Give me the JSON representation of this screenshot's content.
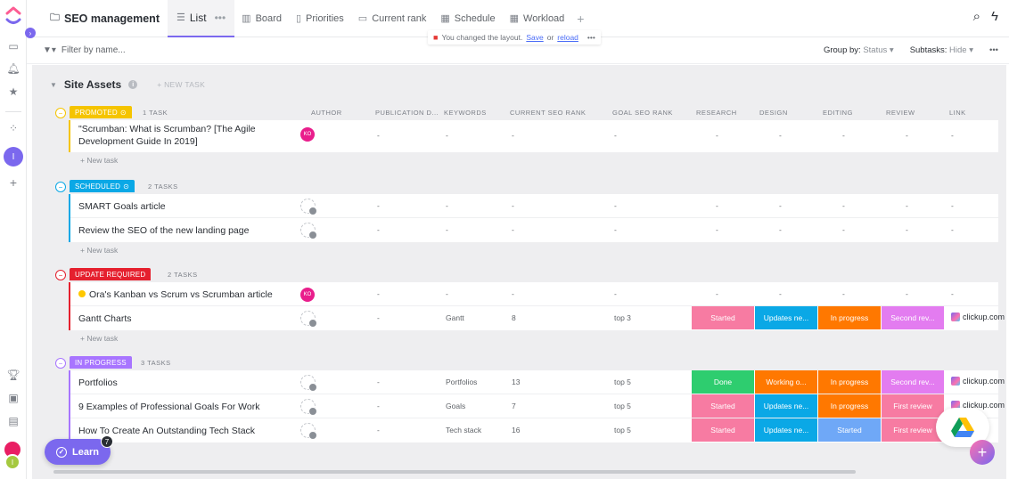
{
  "header": {
    "space_title": "SEO management",
    "tabs": [
      {
        "label": "List",
        "icon": "list-icon"
      },
      {
        "label": "Board",
        "icon": "board-icon"
      },
      {
        "label": "Priorities",
        "icon": "priorities-icon"
      },
      {
        "label": "Current rank",
        "icon": "current-rank-icon"
      },
      {
        "label": "Schedule",
        "icon": "calendar-icon"
      },
      {
        "label": "Workload",
        "icon": "workload-icon"
      }
    ],
    "tab_more": "•••",
    "add_tab": "+"
  },
  "notice": {
    "text": "You changed the layout.",
    "save": "Save",
    "or": "or",
    "reload": "reload",
    "more": "•••"
  },
  "filterbar": {
    "filter_placeholder": "Filter by name...",
    "group_by_label": "Group by:",
    "group_by_value": "Status",
    "subtasks_label": "Subtasks:",
    "subtasks_value": "Hide",
    "more": "•••"
  },
  "rail": {
    "workspace_initial": "I",
    "user_initial": "I"
  },
  "list": {
    "title": "Site Assets",
    "new_task": "+ NEW TASK",
    "new_task_row": "+ New task"
  },
  "columns": [
    "AUTHOR",
    "PUBLICATION D...",
    "KEYWORDS",
    "CURRENT SEO RANK",
    "GOAL SEO RANK",
    "RESEARCH",
    "DESIGN",
    "EDITING",
    "REVIEW",
    "LINK"
  ],
  "groups": [
    {
      "status": "PROMOTED",
      "count": "1 TASK",
      "color": "#f5c400",
      "tasks": [
        {
          "name": "\"Scrumban: What is Scrumban? [The Agile Development Guide In 2019]",
          "author": "KO",
          "pub": "-",
          "keywords": "-",
          "current": "-",
          "goal": "-",
          "research": "-",
          "design": "-",
          "editing": "-",
          "review": "-",
          "link": "-"
        }
      ]
    },
    {
      "status": "SCHEDULED",
      "count": "2 TASKS",
      "color": "#0aa8e6",
      "tasks": [
        {
          "name": "SMART Goals article",
          "author": "",
          "pub": "-",
          "keywords": "-",
          "current": "-",
          "goal": "-",
          "research": "-",
          "design": "-",
          "editing": "-",
          "review": "-",
          "link": "-"
        },
        {
          "name": "Review the SEO of the new landing page",
          "author": "",
          "pub": "-",
          "keywords": "-",
          "current": "-",
          "goal": "-",
          "research": "-",
          "design": "-",
          "editing": "-",
          "review": "-",
          "link": "-"
        }
      ]
    },
    {
      "status": "UPDATE REQUIRED",
      "count": "2 TASKS",
      "color": "#e5202e",
      "tasks": [
        {
          "name": "Ora's Kanban vs Scrum vs Scrumban article",
          "warn": true,
          "author": "KO",
          "pub": "-",
          "keywords": "-",
          "current": "-",
          "goal": "-",
          "research": "-",
          "design": "-",
          "editing": "-",
          "review": "-",
          "link": "-"
        },
        {
          "name": "Gantt Charts",
          "author": "",
          "pub": "-",
          "keywords": "Gantt",
          "current": "8",
          "goal": "top 3",
          "research": {
            "label": "Started",
            "color": "#f77ba2"
          },
          "design": {
            "label": "Updates ne...",
            "color": "#0aa8e6"
          },
          "editing": {
            "label": "In progress",
            "color": "#ff7800"
          },
          "review": {
            "label": "Second rev...",
            "color": "#e37cf0"
          },
          "link": "clickup.com"
        }
      ]
    },
    {
      "status": "IN PROGRESS",
      "count": "3 TASKS",
      "color": "#a875ff",
      "tasks": [
        {
          "name": "Portfolios",
          "author": "",
          "pub": "-",
          "keywords": "Portfolios",
          "current": "13",
          "goal": "top 5",
          "research": {
            "label": "Done",
            "color": "#2ecd6f"
          },
          "design": {
            "label": "Working o...",
            "color": "#ff7800"
          },
          "editing": {
            "label": "In progress",
            "color": "#ff7800"
          },
          "review": {
            "label": "Second rev...",
            "color": "#e37cf0"
          },
          "link": "clickup.com"
        },
        {
          "name": "9 Examples of Professional Goals For Work",
          "author": "",
          "pub": "-",
          "keywords": "Goals",
          "current": "7",
          "goal": "top 5",
          "research": {
            "label": "Started",
            "color": "#f77ba2"
          },
          "design": {
            "label": "Updates ne...",
            "color": "#0aa8e6"
          },
          "editing": {
            "label": "In progress",
            "color": "#ff7800"
          },
          "review": {
            "label": "First review",
            "color": "#f77ba2"
          },
          "link": "clickup.com"
        },
        {
          "name": "How To Create An Outstanding Tech Stack",
          "author": "",
          "pub": "-",
          "keywords": "Tech stack",
          "current": "16",
          "goal": "top 5",
          "research": {
            "label": "Started",
            "color": "#f77ba2"
          },
          "design": {
            "label": "Updates ne...",
            "color": "#0aa8e6"
          },
          "editing": {
            "label": "Started",
            "color": "#6fa8f7"
          },
          "review": {
            "label": "First review",
            "color": "#f77ba2"
          },
          "link": ""
        }
      ]
    }
  ],
  "floating": {
    "learn_label": "Learn",
    "learn_badge": "7",
    "fab": "+"
  }
}
